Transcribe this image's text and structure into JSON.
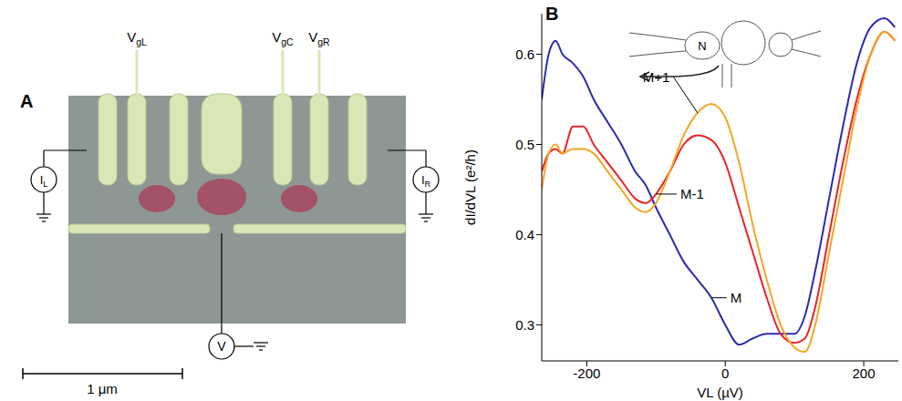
{
  "chart_data": {
    "type": "line",
    "panel": "B",
    "inset_label": "N",
    "x_label": "VL (µV)",
    "y_label": "dI/dVL (e²/h)",
    "x": [
      -265,
      -255,
      -245,
      -235,
      -220,
      -205,
      -190,
      -170,
      -150,
      -130,
      -115,
      -100,
      -80,
      -60,
      -40,
      -20,
      0,
      20,
      40,
      60,
      80,
      100,
      115,
      130,
      150,
      170,
      190,
      210,
      230,
      245
    ],
    "series": [
      {
        "name": "M",
        "color": "#2b2bb0",
        "values": [
          0.55,
          0.6,
          0.615,
          0.6,
          0.59,
          0.575,
          0.55,
          0.525,
          0.5,
          0.47,
          0.455,
          0.43,
          0.4,
          0.37,
          0.35,
          0.33,
          0.3,
          0.278,
          0.285,
          0.29,
          0.29,
          0.29,
          0.31,
          0.36,
          0.44,
          0.52,
          0.59,
          0.63,
          0.64,
          0.63
        ]
      },
      {
        "name": "M-1",
        "color": "#e8242a",
        "values": [
          0.47,
          0.49,
          0.495,
          0.49,
          0.52,
          0.52,
          0.5,
          0.48,
          0.46,
          0.44,
          0.435,
          0.445,
          0.47,
          0.5,
          0.51,
          0.505,
          0.48,
          0.43,
          0.38,
          0.33,
          0.29,
          0.28,
          0.285,
          0.32,
          0.4,
          0.48,
          0.55,
          0.6,
          0.625,
          0.615
        ]
      },
      {
        "name": "M+1",
        "color": "#f5a623",
        "values": [
          0.45,
          0.49,
          0.5,
          0.49,
          0.495,
          0.495,
          0.49,
          0.47,
          0.45,
          0.43,
          0.425,
          0.435,
          0.47,
          0.51,
          0.535,
          0.545,
          0.53,
          0.48,
          0.41,
          0.35,
          0.3,
          0.275,
          0.27,
          0.3,
          0.38,
          0.46,
          0.54,
          0.6,
          0.625,
          0.615
        ]
      }
    ],
    "xlim": [
      -265,
      250
    ],
    "xticks": [
      -200,
      0,
      200
    ],
    "ylim": [
      0.26,
      0.645
    ],
    "yticks": [
      0.3,
      0.4,
      0.5,
      0.6
    ],
    "grid": false,
    "tick_labels": true
  },
  "diagram": {
    "panel": "A",
    "gates": [
      {
        "main": "V",
        "sub": "gL"
      },
      {
        "main": "V",
        "sub": "gC"
      },
      {
        "main": "V",
        "sub": "gR"
      }
    ],
    "currents": [
      {
        "main": "I",
        "sub": "L"
      },
      {
        "main": "I",
        "sub": "R"
      }
    ],
    "voltage": "V",
    "scale_bar": "1 μm"
  }
}
